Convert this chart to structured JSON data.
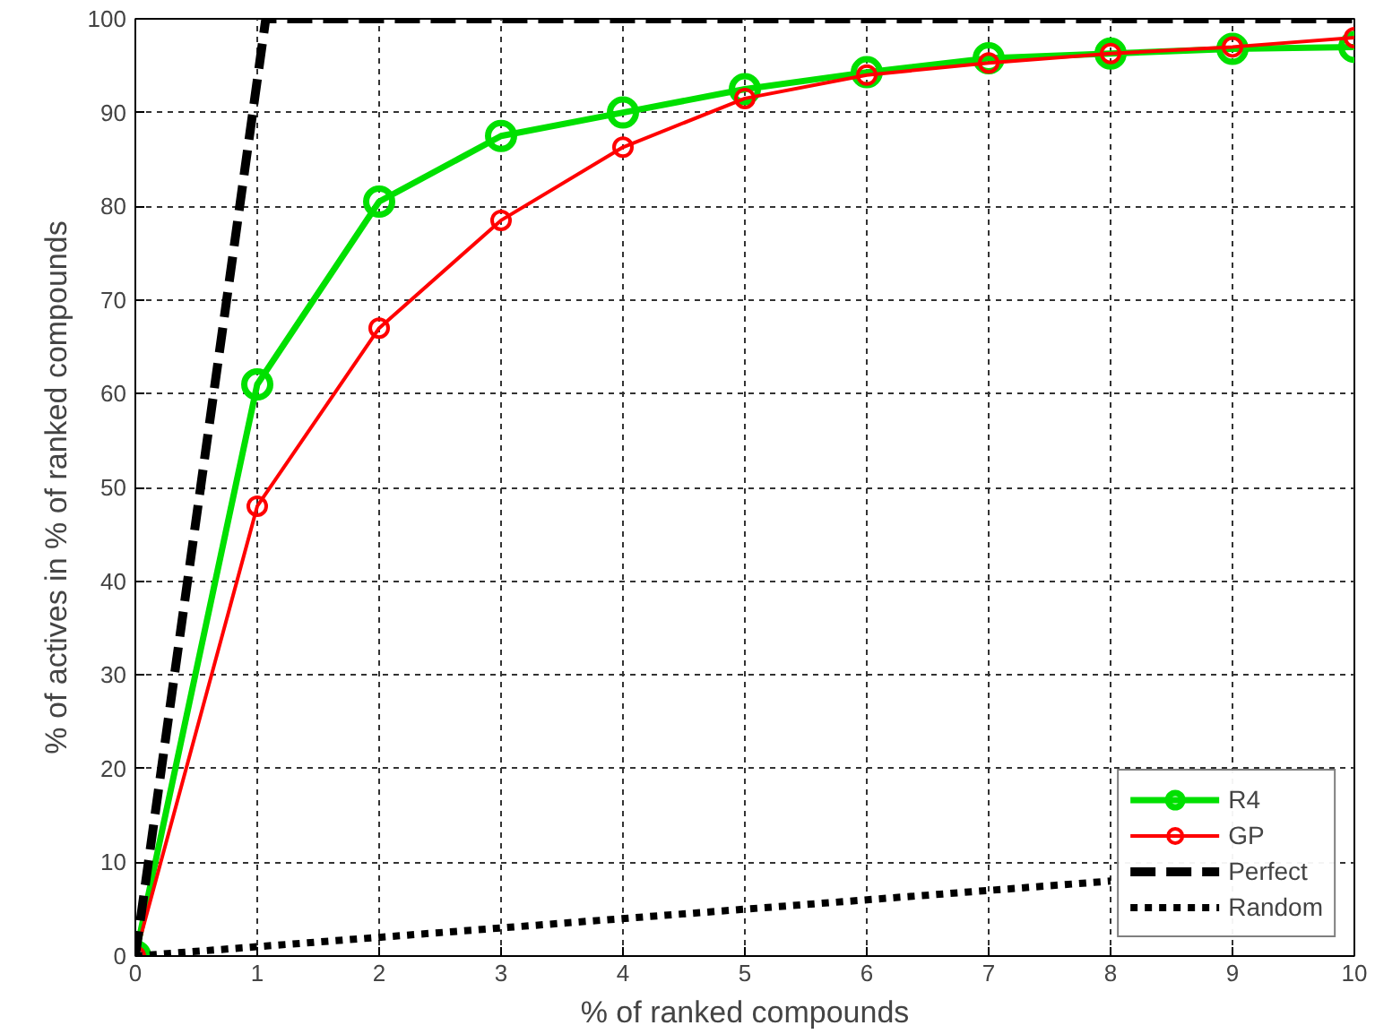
{
  "chart_data": {
    "type": "line",
    "xlabel": "% of ranked compounds",
    "ylabel": "% of actives in % of ranked compounds",
    "x": [
      0,
      1,
      2,
      3,
      4,
      5,
      6,
      7,
      8,
      9,
      10
    ],
    "series": [
      {
        "name": "R4",
        "color": "#00e000",
        "values": [
          0,
          61,
          80.5,
          87.5,
          90,
          92.5,
          94.3,
          95.8,
          96.3,
          96.8,
          97
        ],
        "marker": "circle",
        "line_style": "solid"
      },
      {
        "name": "GP",
        "color": "#ff0000",
        "values": [
          0,
          48,
          67,
          78.5,
          86.3,
          91.5,
          94,
          95.3,
          96.3,
          97,
          98
        ],
        "marker": "circle",
        "line_style": "solid"
      },
      {
        "name": "Perfect",
        "color": "#000000",
        "x": [
          0,
          1.07,
          10
        ],
        "values": [
          0,
          100,
          100
        ],
        "marker": "none",
        "line_style": "dashed"
      },
      {
        "name": "Random",
        "color": "#000000",
        "x": [
          0,
          8
        ],
        "values": [
          0,
          8
        ],
        "marker": "none",
        "line_style": "dotted"
      }
    ],
    "xlim": [
      0,
      10
    ],
    "ylim": [
      0,
      100
    ],
    "xticks": [
      0,
      1,
      2,
      3,
      4,
      5,
      6,
      7,
      8,
      9,
      10
    ],
    "yticks": [
      0,
      10,
      20,
      30,
      40,
      50,
      60,
      70,
      80,
      90,
      100
    ],
    "grid": true,
    "legend": "bottom right"
  }
}
